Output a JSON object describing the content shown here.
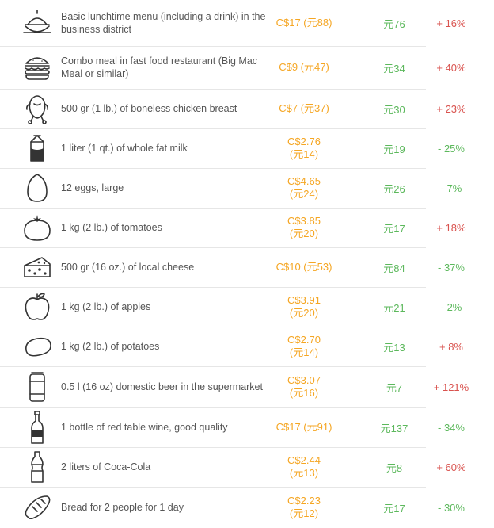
{
  "colors": {
    "price": "#f5a623",
    "local": "#5cb85c",
    "increase": "#d9534f",
    "decrease": "#5cb85c",
    "icon": "#333333"
  },
  "rows": [
    {
      "icon": "lunch-menu-icon",
      "desc": "Basic lunchtime menu (including a drink) in the business district",
      "price": "C$17 (元88)",
      "local": "元76",
      "change": "+ 16%",
      "dir": "up"
    },
    {
      "icon": "burger-icon",
      "desc": "Combo meal in fast food restaurant (Big Mac Meal or similar)",
      "price": "C$9 (元47)",
      "local": "元34",
      "change": "+ 40%",
      "dir": "up"
    },
    {
      "icon": "chicken-icon",
      "desc": "500 gr (1 lb.) of boneless chicken breast",
      "price": "C$7 (元37)",
      "local": "元30",
      "change": "+ 23%",
      "dir": "up"
    },
    {
      "icon": "milk-icon",
      "desc": "1 liter (1 qt.) of whole fat milk",
      "price": "C$2.76 (元14)",
      "local": "元19",
      "change": "- 25%",
      "dir": "down"
    },
    {
      "icon": "egg-icon",
      "desc": "12 eggs, large",
      "price": "C$4.65 (元24)",
      "local": "元26",
      "change": "- 7%",
      "dir": "down"
    },
    {
      "icon": "tomato-icon",
      "desc": "1 kg (2 lb.) of tomatoes",
      "price": "C$3.85 (元20)",
      "local": "元17",
      "change": "+ 18%",
      "dir": "up"
    },
    {
      "icon": "cheese-icon",
      "desc": "500 gr (16 oz.) of local cheese",
      "price": "C$10 (元53)",
      "local": "元84",
      "change": "- 37%",
      "dir": "down"
    },
    {
      "icon": "apple-icon",
      "desc": "1 kg (2 lb.) of apples",
      "price": "C$3.91 (元20)",
      "local": "元21",
      "change": "- 2%",
      "dir": "down"
    },
    {
      "icon": "potato-icon",
      "desc": "1 kg (2 lb.) of potatoes",
      "price": "C$2.70 (元14)",
      "local": "元13",
      "change": "+ 8%",
      "dir": "up"
    },
    {
      "icon": "beer-can-icon",
      "desc": "0.5 l (16 oz) domestic beer in the supermarket",
      "price": "C$3.07 (元16)",
      "local": "元7",
      "change": "+ 121%",
      "dir": "up"
    },
    {
      "icon": "wine-bottle-icon",
      "desc": "1 bottle of red table wine, good quality",
      "price": "C$17 (元91)",
      "local": "元137",
      "change": "- 34%",
      "dir": "down"
    },
    {
      "icon": "cola-bottle-icon",
      "desc": "2 liters of Coca-Cola",
      "price": "C$2.44 (元13)",
      "local": "元8",
      "change": "+ 60%",
      "dir": "up"
    },
    {
      "icon": "bread-icon",
      "desc": "Bread for 2 people for 1 day",
      "price": "C$2.23 (元12)",
      "local": "元17",
      "change": "- 30%",
      "dir": "down"
    }
  ]
}
